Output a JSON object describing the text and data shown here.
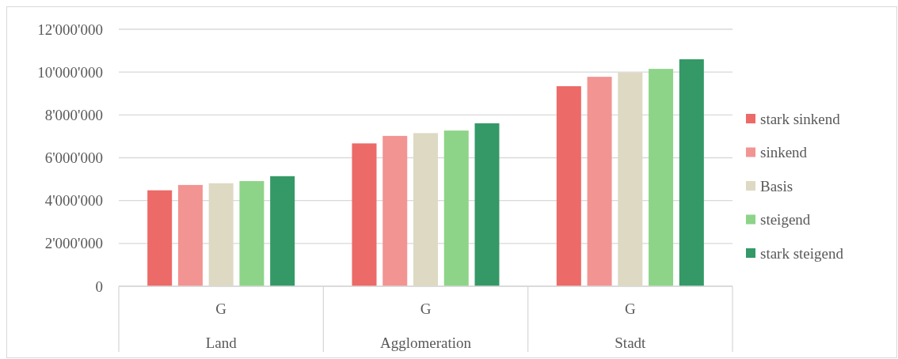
{
  "chart_data": {
    "type": "bar",
    "categories": [
      "G",
      "G",
      "G"
    ],
    "annotations": [
      "Land",
      "Agglomeration",
      "Stadt"
    ],
    "series": [
      {
        "name": "stark sinkend",
        "color": "#ec6a67",
        "values": [
          4480000,
          6670000,
          9340000
        ]
      },
      {
        "name": "sinkend",
        "color": "#f29492",
        "values": [
          4730000,
          7020000,
          9780000
        ]
      },
      {
        "name": "Basis",
        "color": "#ddd9c3",
        "values": [
          4810000,
          7150000,
          9980000
        ]
      },
      {
        "name": "steigend",
        "color": "#8dd488",
        "values": [
          4910000,
          7270000,
          10150000
        ]
      },
      {
        "name": "stark steigend",
        "color": "#349966",
        "values": [
          5140000,
          7610000,
          10600000
        ]
      }
    ],
    "ylim": [
      0,
      12000000
    ],
    "yticks": [
      {
        "value": 0,
        "label": "0"
      },
      {
        "value": 2000000,
        "label": "2'000'000"
      },
      {
        "value": 4000000,
        "label": "4'000'000"
      },
      {
        "value": 6000000,
        "label": "6'000'000"
      },
      {
        "value": 8000000,
        "label": "8'000'000"
      },
      {
        "value": 10000000,
        "label": "10'000'000"
      },
      {
        "value": 12000000,
        "label": "12'000'000"
      }
    ],
    "grid": "y",
    "legend": "right"
  }
}
